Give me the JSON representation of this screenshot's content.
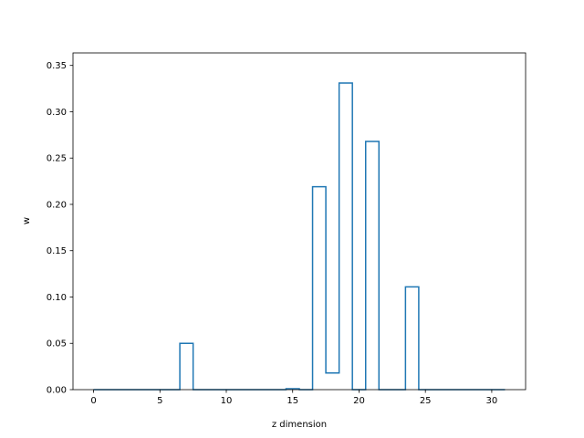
{
  "chart_data": {
    "type": "line",
    "drawstyle": "steps-mid",
    "xlabel": "z dimension",
    "ylabel": "w",
    "xlim": [
      -1.55,
      32.55
    ],
    "ylim": [
      0.0,
      0.3635
    ],
    "xticks": [
      0,
      5,
      10,
      15,
      20,
      25,
      30
    ],
    "xtick_labels": [
      "0",
      "5",
      "10",
      "15",
      "20",
      "25",
      "30"
    ],
    "yticks": [
      0.0,
      0.05,
      0.1,
      0.15,
      0.2,
      0.25,
      0.3,
      0.35
    ],
    "ytick_labels": [
      "0.00",
      "0.05",
      "0.10",
      "0.15",
      "0.20",
      "0.25",
      "0.30",
      "0.35"
    ],
    "grid": false,
    "series": [
      {
        "color": "#1f77b4",
        "x": [
          0,
          1,
          2,
          3,
          4,
          5,
          6,
          7,
          8,
          9,
          10,
          11,
          12,
          13,
          14,
          15,
          16,
          17,
          18,
          19,
          20,
          21,
          22,
          23,
          24,
          25,
          26,
          27,
          28,
          29,
          30,
          31
        ],
        "y": [
          0,
          0,
          0,
          0,
          0,
          0,
          0,
          0.05,
          0,
          0,
          0,
          0,
          0,
          0,
          0,
          0.001,
          0,
          0.219,
          0.018,
          0.331,
          0,
          0.268,
          0,
          0,
          0.111,
          0,
          0,
          0,
          0,
          0,
          0,
          0
        ]
      }
    ]
  }
}
